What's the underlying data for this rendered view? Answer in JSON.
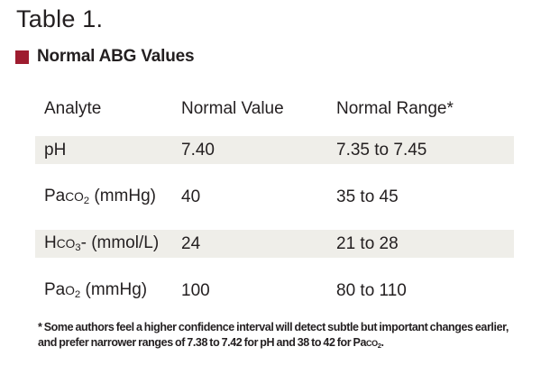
{
  "page": {
    "background": "#ffffff",
    "text_color": "#231f20"
  },
  "title": "Table 1.",
  "caption": {
    "bullet_color": "#9e1c2f",
    "label": "Normal ABG Values"
  },
  "table": {
    "shaded_row_color": "#efeee9",
    "columns": [
      "Analyte",
      "Normal Value",
      "Normal Range*"
    ],
    "rows": [
      {
        "shaded": true,
        "analyte": [
          {
            "t": "pH"
          }
        ],
        "value": "7.40",
        "range": "7.35 to 7.45"
      },
      {
        "shaded": false,
        "analyte": [
          {
            "t": "Pa"
          },
          {
            "t": "co",
            "sc": true
          },
          {
            "t": "2",
            "sub": true
          },
          {
            "t": " (mmHg)"
          }
        ],
        "value": "40",
        "range": "35 to 45"
      },
      {
        "shaded": true,
        "analyte": [
          {
            "t": "H"
          },
          {
            "t": "co",
            "sc": true
          },
          {
            "t": "3",
            "sub": true
          },
          {
            "t": "- (mmol/L)"
          }
        ],
        "value": "24",
        "range": "21 to 28"
      },
      {
        "shaded": false,
        "analyte": [
          {
            "t": "Pa"
          },
          {
            "t": "o",
            "sc": true
          },
          {
            "t": "2",
            "sub": true
          },
          {
            "t": " (mmHg)"
          }
        ],
        "value": "100",
        "range": "80 to 110"
      }
    ]
  },
  "footnote": {
    "lines": [
      [
        {
          "t": "* Some authors feel a higher confidence interval will detect subtle but important changes earlier,"
        }
      ],
      [
        {
          "t": "and prefer narrower ranges of 7.38 to 7.42 for pH and 38 to 42 for Pa"
        },
        {
          "t": "co",
          "sc": true
        },
        {
          "t": "2",
          "sub": true
        },
        {
          "t": "."
        }
      ]
    ]
  }
}
